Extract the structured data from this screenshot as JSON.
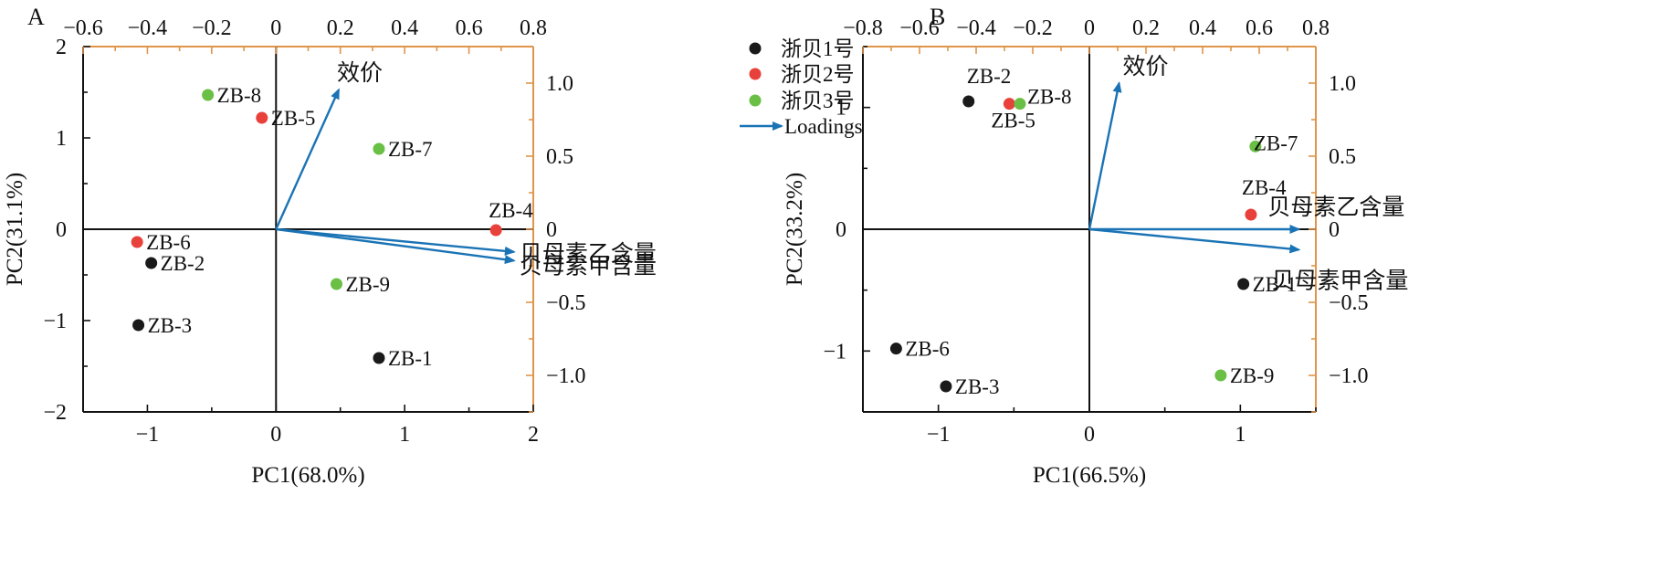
{
  "legend": {
    "items": [
      {
        "label": "浙贝1号",
        "color": "#1a1a1a"
      },
      {
        "label": "浙贝2号",
        "color": "#e8403a"
      },
      {
        "label": "浙贝3号",
        "color": "#6abf45"
      }
    ],
    "loadings_label": "Loadings",
    "loadings_color": "#1a73b5"
  },
  "colors": {
    "axis_right_top": "#e0954a",
    "loadings": "#1a73b5"
  },
  "chart_data": [
    {
      "type": "scatter",
      "panel": "A",
      "title": "",
      "xlabel": "PC1(68.0%)",
      "ylabel": "PC2(31.1%)",
      "xlim": [
        -1.5,
        2
      ],
      "ylim": [
        -2,
        2
      ],
      "xticks": [
        -1,
        0,
        1,
        2
      ],
      "xtick_labels": [
        "−1",
        "0",
        "1",
        "2"
      ],
      "yticks": [
        -2,
        -1,
        0,
        1,
        2
      ],
      "ytick_labels": [
        "−2",
        "−1",
        "0",
        "1",
        "2"
      ],
      "top_lim": [
        -0.6,
        0.8
      ],
      "top_ticks": [
        -0.6,
        -0.4,
        -0.2,
        0,
        0.2,
        0.4,
        0.6,
        0.8
      ],
      "top_tick_labels": [
        "−0.6",
        "−0.4",
        "−0.2",
        "0",
        "0.2",
        "0.4",
        "0.6",
        "0.8"
      ],
      "right_lim": [
        -1.25,
        1.25
      ],
      "right_ticks": [
        1.0,
        0.5,
        0,
        -0.5,
        -1.0
      ],
      "right_tick_labels": [
        "1.0",
        "0.5",
        "0",
        "−0.5",
        "−1.0"
      ],
      "points": [
        {
          "label": "ZB-8",
          "x": -0.53,
          "y": 1.47,
          "group": 2
        },
        {
          "label": "ZB-5",
          "x": -0.11,
          "y": 1.22,
          "group": 1
        },
        {
          "label": "ZB-7",
          "x": 0.8,
          "y": 0.88,
          "group": 2
        },
        {
          "label": "ZB-4",
          "x": 1.71,
          "y": -0.01,
          "group": 1
        },
        {
          "label": "ZB-6",
          "x": -1.08,
          "y": -0.14,
          "group": 1
        },
        {
          "label": "ZB-2",
          "x": -0.97,
          "y": -0.37,
          "group": 0
        },
        {
          "label": "ZB-9",
          "x": 0.47,
          "y": -0.6,
          "group": 2
        },
        {
          "label": "ZB-3",
          "x": -1.07,
          "y": -1.05,
          "group": 0
        },
        {
          "label": "ZB-1",
          "x": 0.8,
          "y": -1.41,
          "group": 0
        }
      ],
      "loadings": [
        {
          "label": "效价",
          "x": 0.195,
          "y": 0.955
        },
        {
          "label": "贝母素乙含量",
          "x": 0.74,
          "y": -0.155
        },
        {
          "label": "贝母素甲含量",
          "x": 0.74,
          "y": -0.215
        }
      ]
    },
    {
      "type": "scatter",
      "panel": "B",
      "title": "",
      "xlabel": "PC1(66.5%)",
      "ylabel": "PC2(33.2%)",
      "xlim": [
        -1.5,
        1.5
      ],
      "ylim": [
        -1.5,
        1.5
      ],
      "xticks": [
        -1,
        0,
        1
      ],
      "xtick_labels": [
        "−1",
        "0",
        "1"
      ],
      "yticks": [
        -1,
        0,
        1
      ],
      "ytick_labels": [
        "−1",
        "0",
        "1"
      ],
      "top_lim": [
        -0.8,
        0.8
      ],
      "top_ticks": [
        -0.8,
        -0.6,
        -0.4,
        -0.2,
        0,
        0.2,
        0.4,
        0.6,
        0.8
      ],
      "top_tick_labels": [
        "−0.8",
        "−0.6",
        "−0.4",
        "−0.2",
        "0",
        "0.2",
        "0.4",
        "0.6",
        "0.8"
      ],
      "right_lim": [
        -1.25,
        1.25
      ],
      "right_ticks": [
        1.0,
        0.5,
        0,
        -0.5,
        -1.0
      ],
      "right_tick_labels": [
        "1.0",
        "0.5",
        "0",
        "−0.5",
        "−1.0"
      ],
      "points": [
        {
          "label": "ZB-2",
          "x": -0.8,
          "y": 1.05,
          "group": 0
        },
        {
          "label": "ZB-5",
          "x": -0.53,
          "y": 1.03,
          "group": 1
        },
        {
          "label": "ZB-8",
          "x": -0.46,
          "y": 1.03,
          "group": 2
        },
        {
          "label": "ZB-7",
          "x": 1.1,
          "y": 0.68,
          "group": 2
        },
        {
          "label": "ZB-4",
          "x": 1.07,
          "y": 0.12,
          "group": 1
        },
        {
          "label": "ZB-1",
          "x": 1.02,
          "y": -0.45,
          "group": 0
        },
        {
          "label": "ZB-6",
          "x": -1.28,
          "y": -0.98,
          "group": 0
        },
        {
          "label": "ZB-9",
          "x": 0.87,
          "y": -1.2,
          "group": 2
        },
        {
          "label": "ZB-3",
          "x": -0.95,
          "y": -1.29,
          "group": 0
        }
      ],
      "loadings": [
        {
          "label": "效价",
          "x": 0.105,
          "y": 1.0
        },
        {
          "label": "贝母素乙含量",
          "x": 0.74,
          "y": 0.0
        },
        {
          "label": "贝母素甲含量",
          "x": 0.74,
          "y": -0.14
        }
      ]
    }
  ]
}
